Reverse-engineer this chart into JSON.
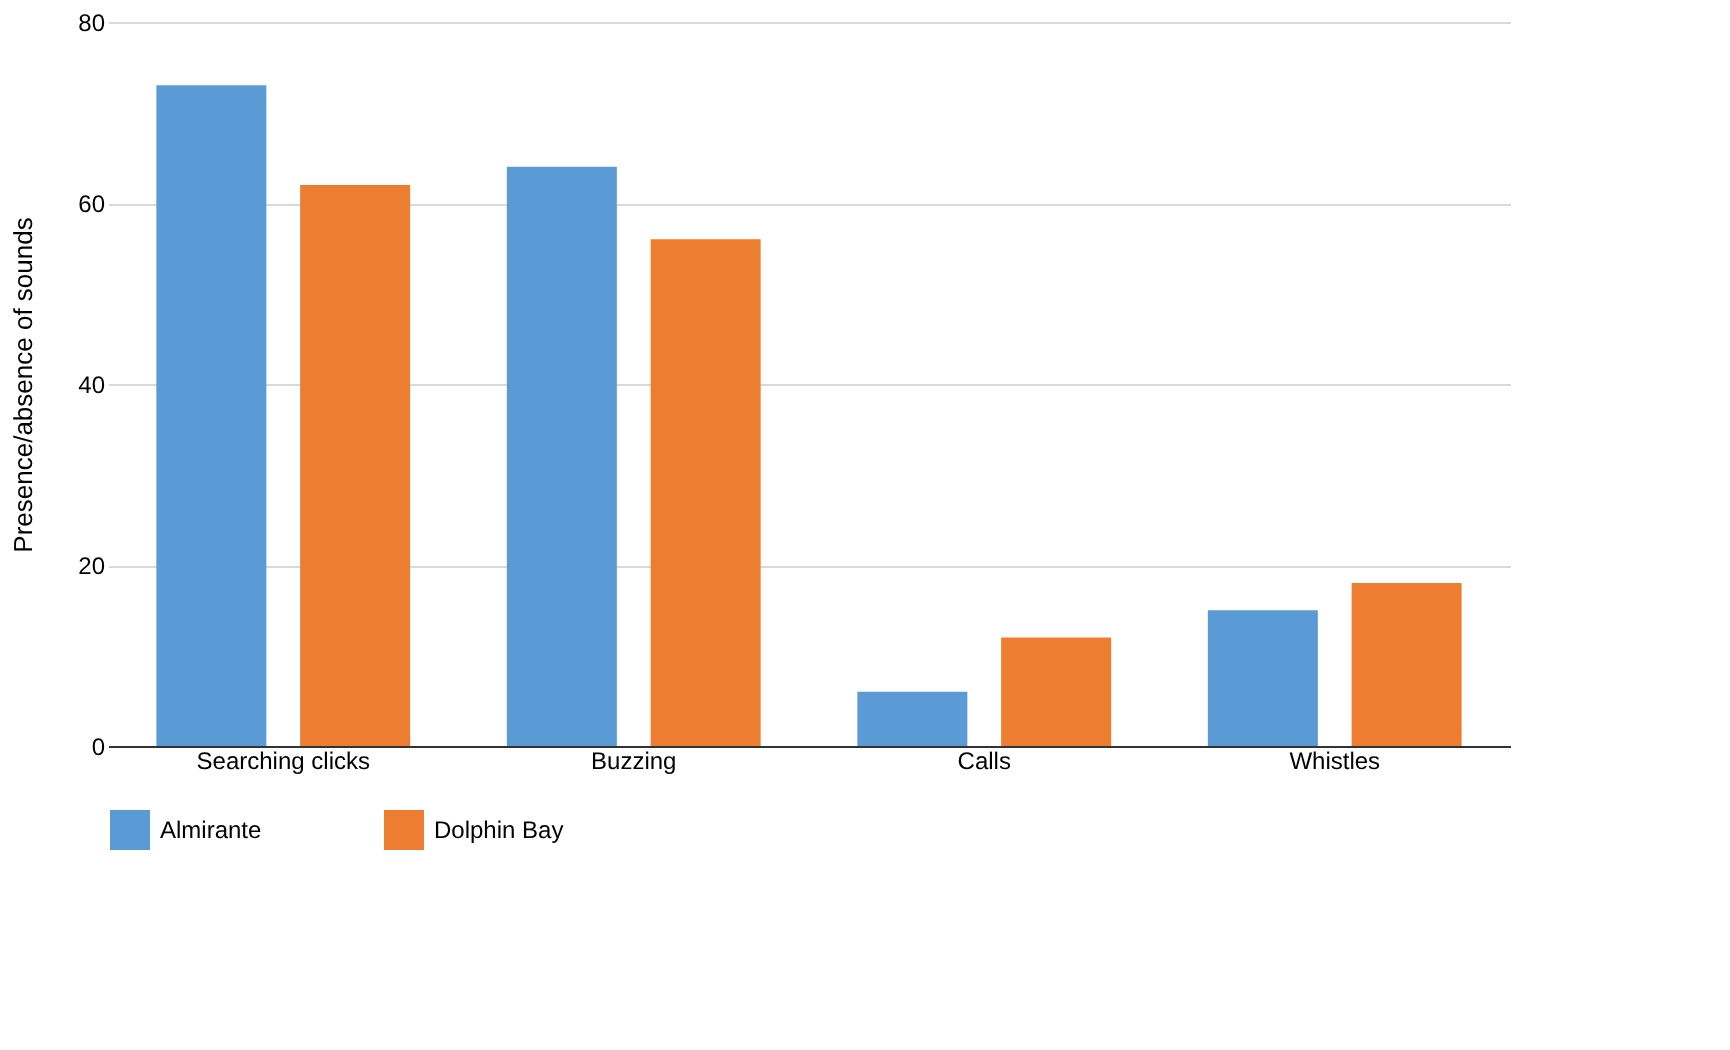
{
  "chart_data": {
    "type": "bar",
    "ylabel": "Presence/absence of sounds",
    "categories": [
      "Searching clicks",
      "Buzzing",
      "Calls",
      "Whistles"
    ],
    "series": [
      {
        "name": "Almirante",
        "color": "#5b9bd5",
        "values": [
          73,
          64,
          6,
          15
        ]
      },
      {
        "name": "Dolphin Bay",
        "color": "#ed7d31",
        "values": [
          62,
          56,
          12,
          18
        ]
      }
    ],
    "ylim": [
      0,
      80
    ],
    "yticks": [
      0,
      20,
      40,
      60,
      80
    ],
    "grid": "y",
    "legend": "bottom"
  }
}
